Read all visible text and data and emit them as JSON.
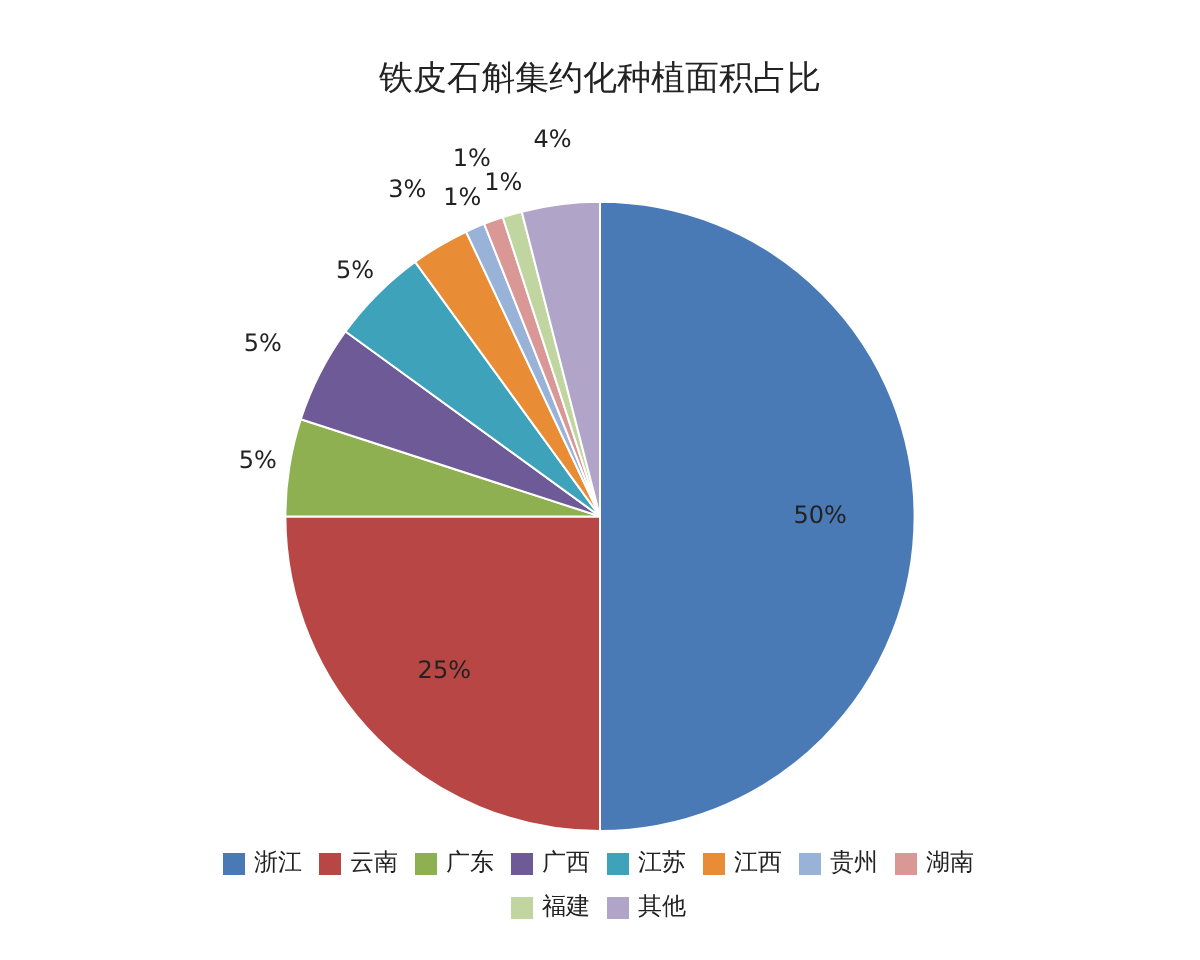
{
  "chart_data": {
    "type": "pie",
    "title": "铁皮石斛集约化种植面积占比",
    "categories": [
      "浙江",
      "云南",
      "广东",
      "广西",
      "江苏",
      "江西",
      "贵州",
      "湖南",
      "福建",
      "其他"
    ],
    "values": [
      50,
      25,
      5,
      5,
      5,
      3,
      1,
      1,
      1,
      4
    ],
    "colors": [
      "#4a7ab5",
      "#b84644",
      "#8fb050",
      "#6d5a96",
      "#3ea2bb",
      "#e88c36",
      "#98b2d8",
      "#d99896",
      "#c0d5a0",
      "#b0a4c8"
    ],
    "value_labels": [
      "50%",
      "25%",
      "5%",
      "5%",
      "5%",
      "3%",
      "1%",
      "1%",
      "1%",
      "4%"
    ],
    "legend": "bottom"
  }
}
